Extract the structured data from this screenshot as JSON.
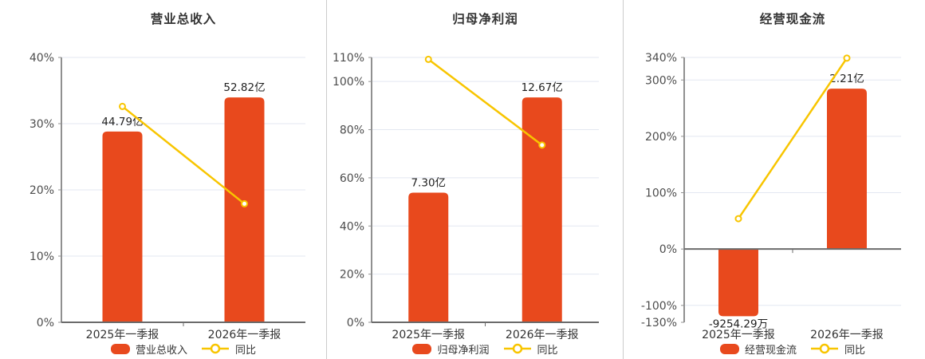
{
  "colors": {
    "bar": "#E8491D",
    "line": "#F8C500",
    "grid": "#E3E7F1",
    "axis": "#909090",
    "zero_axis": "#6B6B6B",
    "tick_text": "#4D4D4D",
    "value_text": "#1F1F1F",
    "title_text": "#333333",
    "divider": "#CCCCCC"
  },
  "chart_data": [
    {
      "type": "bar",
      "title": "营业总收入",
      "categories": [
        "2025年一季报",
        "2026年一季报"
      ],
      "bar_series": {
        "name": "营业总收入",
        "unit": "亿",
        "values": [
          44.79,
          52.82
        ],
        "labels": [
          "44.79亿",
          "52.82亿"
        ]
      },
      "line_series": {
        "name": "同比",
        "unit": "%",
        "values": [
          32.6,
          17.9
        ]
      },
      "y_axis": {
        "min": 0,
        "max": 40,
        "ticks": [
          0,
          10,
          20,
          30,
          40
        ],
        "tick_suffix": "%"
      },
      "bar_axis_max": 62.2,
      "grid": true,
      "legend_position": "bottom"
    },
    {
      "type": "bar",
      "title": "归母净利润",
      "categories": [
        "2025年一季报",
        "2026年一季报"
      ],
      "bar_series": {
        "name": "归母净利润",
        "unit": "亿",
        "values": [
          7.3,
          12.67
        ],
        "labels": [
          "7.30亿",
          "12.67亿"
        ]
      },
      "line_series": {
        "name": "同比",
        "unit": "%",
        "values": [
          109.2,
          73.6
        ]
      },
      "y_axis": {
        "min": 0,
        "max": 110,
        "ticks": [
          0,
          20,
          40,
          60,
          80,
          100,
          110
        ],
        "tick_suffix": "%"
      },
      "bar_axis_max": 14.92,
      "grid": true,
      "legend_position": "bottom"
    },
    {
      "type": "bar",
      "title": "经营现金流",
      "categories": [
        "2025年一季报",
        "2026年一季报"
      ],
      "bar_series": {
        "name": "经营现金流",
        "unit": "亿",
        "values": [
          -0.925429,
          2.21
        ],
        "labels": [
          "-9254.29万",
          "2.21亿"
        ]
      },
      "line_series": {
        "name": "同比",
        "unit": "%",
        "values": [
          53.9,
          338.8
        ]
      },
      "y_axis": {
        "min": -130,
        "max": 340,
        "ticks": [
          -130,
          -100,
          0,
          100,
          200,
          300,
          340
        ],
        "tick_suffix": "%"
      },
      "bar_axis_max": 3.65,
      "grid": true,
      "legend_position": "bottom"
    }
  ]
}
